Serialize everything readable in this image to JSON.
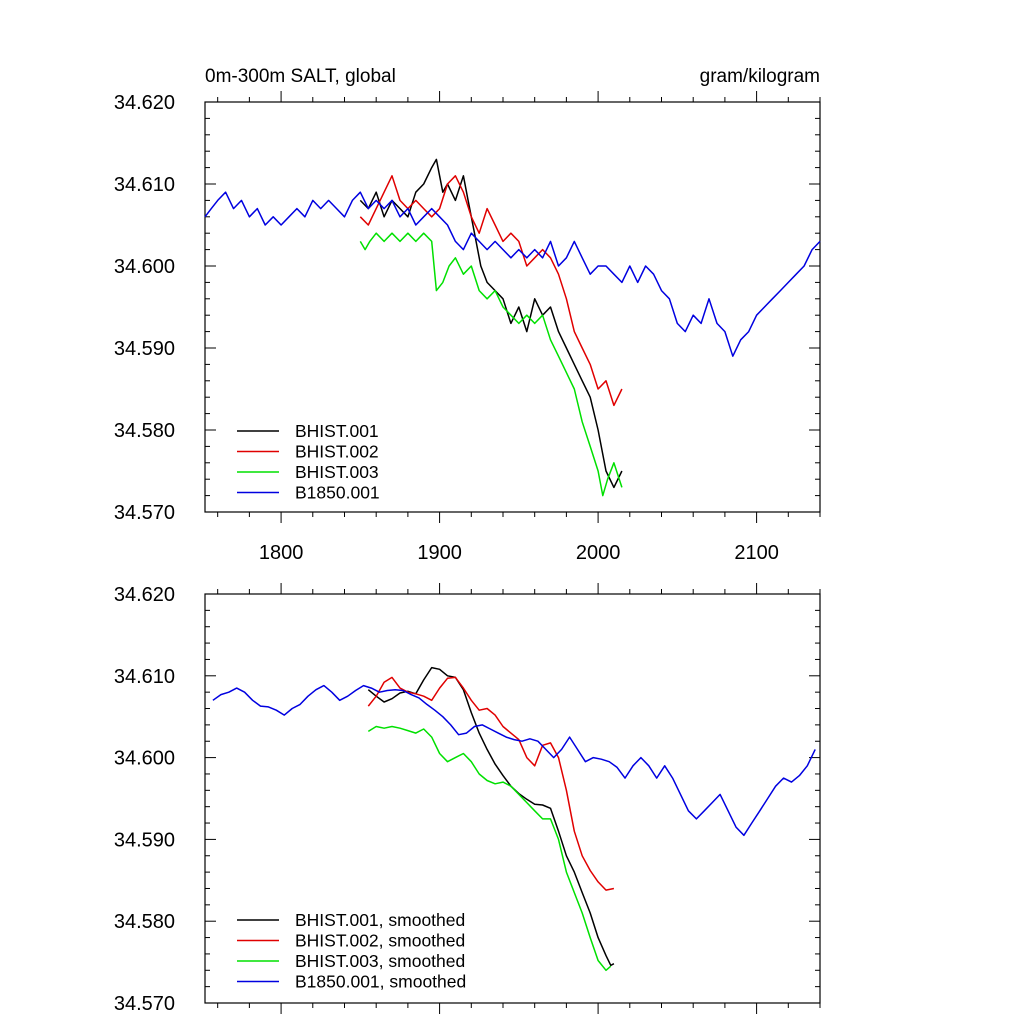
{
  "header": {
    "left_title": "0m-300m SALT, global",
    "right_title": "gram/kilogram"
  },
  "colors": {
    "BHIST.001": "#000000",
    "BHIST.002": "#e00000",
    "BHIST.003": "#00e000",
    "B1850.001": "#0000e0"
  },
  "chart_data": [
    {
      "type": "line",
      "title": "",
      "xlabel": "",
      "ylabel": "",
      "xlim": [
        1752,
        2140
      ],
      "ylim": [
        34.57,
        34.62
      ],
      "x_ticks": [
        1800,
        1900,
        2000,
        2100
      ],
      "x_tick_labels": [
        "1800",
        "1900",
        "2000",
        "2100"
      ],
      "y_ticks": [
        34.57,
        34.58,
        34.59,
        34.6,
        34.61,
        34.62
      ],
      "y_tick_labels": [
        "34.570",
        "34.580",
        "34.590",
        "34.600",
        "34.610",
        "34.620"
      ],
      "grid": false,
      "legend_position": "bottom-left",
      "series": [
        {
          "name": "BHIST.001",
          "color": "#000000",
          "x": [
            1850,
            1855,
            1860,
            1865,
            1870,
            1875,
            1880,
            1885,
            1890,
            1895,
            1898,
            1902,
            1905,
            1910,
            1915,
            1918,
            1922,
            1926,
            1930,
            1935,
            1940,
            1945,
            1950,
            1955,
            1960,
            1965,
            1970,
            1975,
            1980,
            1985,
            1990,
            1995,
            2000,
            2005,
            2010,
            2015
          ],
          "y": [
            34.608,
            34.607,
            34.609,
            34.606,
            34.608,
            34.607,
            34.606,
            34.609,
            34.61,
            34.612,
            34.613,
            34.609,
            34.61,
            34.608,
            34.611,
            34.608,
            34.604,
            34.6,
            34.598,
            34.597,
            34.596,
            34.593,
            34.595,
            34.592,
            34.596,
            34.594,
            34.595,
            34.592,
            34.59,
            34.588,
            34.586,
            34.584,
            34.58,
            34.575,
            34.573,
            34.575
          ]
        },
        {
          "name": "BHIST.002",
          "color": "#e00000",
          "x": [
            1850,
            1855,
            1860,
            1865,
            1870,
            1875,
            1880,
            1885,
            1890,
            1895,
            1900,
            1905,
            1910,
            1915,
            1920,
            1925,
            1930,
            1935,
            1940,
            1945,
            1950,
            1955,
            1960,
            1965,
            1970,
            1975,
            1980,
            1985,
            1990,
            1995,
            2000,
            2005,
            2010,
            2015
          ],
          "y": [
            34.606,
            34.605,
            34.607,
            34.609,
            34.611,
            34.608,
            34.607,
            34.608,
            34.607,
            34.606,
            34.607,
            34.61,
            34.611,
            34.609,
            34.606,
            34.604,
            34.607,
            34.605,
            34.603,
            34.604,
            34.603,
            34.6,
            34.601,
            34.602,
            34.601,
            34.599,
            34.596,
            34.592,
            34.59,
            34.588,
            34.585,
            34.586,
            34.583,
            34.585
          ]
        },
        {
          "name": "BHIST.003",
          "color": "#00e000",
          "x": [
            1850,
            1853,
            1856,
            1860,
            1865,
            1870,
            1875,
            1880,
            1885,
            1890,
            1895,
            1898,
            1902,
            1906,
            1910,
            1915,
            1920,
            1925,
            1930,
            1935,
            1940,
            1945,
            1950,
            1955,
            1960,
            1965,
            1970,
            1975,
            1980,
            1985,
            1990,
            1995,
            2000,
            2003,
            2006,
            2010,
            2015
          ],
          "y": [
            34.603,
            34.602,
            34.603,
            34.604,
            34.603,
            34.604,
            34.603,
            34.604,
            34.603,
            34.604,
            34.603,
            34.597,
            34.598,
            34.6,
            34.601,
            34.599,
            34.6,
            34.597,
            34.596,
            34.597,
            34.595,
            34.594,
            34.593,
            34.594,
            34.593,
            34.594,
            34.591,
            34.589,
            34.587,
            34.585,
            34.581,
            34.578,
            34.575,
            34.572,
            34.574,
            34.576,
            34.573
          ]
        },
        {
          "name": "B1850.001",
          "color": "#0000e0",
          "x": [
            1752,
            1756,
            1760,
            1765,
            1770,
            1775,
            1780,
            1785,
            1790,
            1795,
            1800,
            1805,
            1810,
            1815,
            1820,
            1825,
            1830,
            1835,
            1840,
            1845,
            1850,
            1855,
            1860,
            1865,
            1870,
            1875,
            1880,
            1885,
            1890,
            1895,
            1900,
            1905,
            1910,
            1915,
            1920,
            1925,
            1930,
            1935,
            1940,
            1945,
            1950,
            1955,
            1960,
            1965,
            1970,
            1975,
            1980,
            1985,
            1990,
            1995,
            2000,
            2005,
            2010,
            2015,
            2020,
            2025,
            2030,
            2035,
            2040,
            2045,
            2050,
            2055,
            2060,
            2065,
            2070,
            2075,
            2080,
            2085,
            2090,
            2095,
            2100,
            2105,
            2110,
            2115,
            2120,
            2125,
            2130,
            2135,
            2140
          ],
          "y": [
            34.606,
            34.607,
            34.608,
            34.609,
            34.607,
            34.608,
            34.606,
            34.607,
            34.605,
            34.606,
            34.605,
            34.606,
            34.607,
            34.606,
            34.608,
            34.607,
            34.608,
            34.607,
            34.606,
            34.608,
            34.609,
            34.607,
            34.608,
            34.607,
            34.608,
            34.606,
            34.607,
            34.605,
            34.606,
            34.607,
            34.606,
            34.605,
            34.603,
            34.602,
            34.604,
            34.603,
            34.602,
            34.603,
            34.602,
            34.601,
            34.602,
            34.601,
            34.602,
            34.601,
            34.603,
            34.6,
            34.601,
            34.603,
            34.601,
            34.599,
            34.6,
            34.6,
            34.599,
            34.598,
            34.6,
            34.598,
            34.6,
            34.599,
            34.597,
            34.596,
            34.593,
            34.592,
            34.594,
            34.593,
            34.596,
            34.593,
            34.592,
            34.589,
            34.591,
            34.592,
            34.594,
            34.595,
            34.596,
            34.597,
            34.598,
            34.599,
            34.6,
            34.602,
            34.603
          ]
        }
      ]
    },
    {
      "type": "line",
      "title": "",
      "xlabel": "",
      "ylabel": "",
      "xlim": [
        1752,
        2140
      ],
      "ylim": [
        34.57,
        34.62
      ],
      "x_ticks": [
        1800,
        1900,
        2000,
        2100
      ],
      "y_ticks": [
        34.57,
        34.58,
        34.59,
        34.6,
        34.61,
        34.62
      ],
      "y_tick_labels": [
        "34.570",
        "34.580",
        "34.590",
        "34.600",
        "34.610",
        "34.620"
      ],
      "grid": false,
      "legend_position": "bottom-left",
      "series": [
        {
          "name": "BHIST.001, smoothed",
          "color": "#000000",
          "x": [
            1855,
            1860,
            1865,
            1870,
            1875,
            1880,
            1885,
            1890,
            1895,
            1900,
            1905,
            1910,
            1915,
            1920,
            1925,
            1930,
            1935,
            1940,
            1945,
            1950,
            1955,
            1960,
            1965,
            1970,
            1975,
            1980,
            1985,
            1990,
            1995,
            2000,
            2005,
            2008,
            2010
          ],
          "y": [
            34.6083,
            34.6075,
            34.6068,
            34.6072,
            34.6079,
            34.6081,
            34.6078,
            34.6095,
            34.611,
            34.6108,
            34.61,
            34.6098,
            34.6083,
            34.6055,
            34.603,
            34.601,
            34.5992,
            34.5978,
            34.5965,
            34.5956,
            34.5949,
            34.5943,
            34.5942,
            34.5938,
            34.591,
            34.588,
            34.586,
            34.5835,
            34.581,
            34.578,
            34.5758,
            34.5746,
            34.5748
          ]
        },
        {
          "name": "BHIST.002, smoothed",
          "color": "#e00000",
          "x": [
            1855,
            1860,
            1865,
            1870,
            1875,
            1880,
            1885,
            1890,
            1895,
            1900,
            1905,
            1910,
            1915,
            1920,
            1925,
            1930,
            1935,
            1940,
            1945,
            1950,
            1955,
            1960,
            1965,
            1970,
            1975,
            1980,
            1985,
            1990,
            1995,
            2000,
            2005,
            2010
          ],
          "y": [
            34.6063,
            34.6075,
            34.6092,
            34.6098,
            34.6085,
            34.608,
            34.6078,
            34.6075,
            34.607,
            34.6085,
            34.6097,
            34.6098,
            34.6085,
            34.607,
            34.6058,
            34.606,
            34.6052,
            34.6038,
            34.603,
            34.6022,
            34.6,
            34.599,
            34.6015,
            34.6018,
            34.6,
            34.596,
            34.591,
            34.588,
            34.5862,
            34.5848,
            34.5838,
            34.584
          ]
        },
        {
          "name": "BHIST.003, smoothed",
          "color": "#00e000",
          "x": [
            1855,
            1860,
            1865,
            1870,
            1875,
            1880,
            1885,
            1890,
            1895,
            1900,
            1905,
            1910,
            1915,
            1920,
            1925,
            1930,
            1935,
            1940,
            1945,
            1950,
            1955,
            1960,
            1965,
            1970,
            1975,
            1980,
            1985,
            1990,
            1995,
            2000,
            2005,
            2008
          ],
          "y": [
            34.6032,
            34.6038,
            34.6036,
            34.6038,
            34.6036,
            34.6033,
            34.603,
            34.6035,
            34.6025,
            34.6005,
            34.5995,
            34.6,
            34.6005,
            34.5995,
            34.598,
            34.5972,
            34.5968,
            34.597,
            34.5965,
            34.5955,
            34.5945,
            34.5935,
            34.5925,
            34.5925,
            34.59,
            34.586,
            34.5835,
            34.581,
            34.578,
            34.5752,
            34.574,
            34.5745
          ]
        },
        {
          "name": "B1850.001, smoothed",
          "color": "#0000e0",
          "x": [
            1757,
            1762,
            1767,
            1772,
            1777,
            1782,
            1787,
            1792,
            1797,
            1802,
            1807,
            1812,
            1817,
            1822,
            1827,
            1832,
            1837,
            1842,
            1847,
            1852,
            1857,
            1862,
            1867,
            1872,
            1877,
            1882,
            1887,
            1892,
            1897,
            1902,
            1907,
            1912,
            1917,
            1922,
            1927,
            1932,
            1937,
            1942,
            1947,
            1952,
            1957,
            1962,
            1967,
            1972,
            1977,
            1982,
            1987,
            1992,
            1997,
            2002,
            2007,
            2012,
            2017,
            2022,
            2027,
            2032,
            2037,
            2042,
            2047,
            2052,
            2057,
            2062,
            2067,
            2072,
            2077,
            2082,
            2087,
            2092,
            2097,
            2102,
            2107,
            2112,
            2117,
            2122,
            2127,
            2132,
            2137
          ],
          "y": [
            34.607,
            34.6077,
            34.608,
            34.6085,
            34.608,
            34.607,
            34.6063,
            34.6062,
            34.6058,
            34.6052,
            34.606,
            34.6065,
            34.6075,
            34.6083,
            34.6088,
            34.608,
            34.607,
            34.6075,
            34.6082,
            34.6088,
            34.6085,
            34.608,
            34.6082,
            34.6083,
            34.6082,
            34.6077,
            34.6073,
            34.6065,
            34.6058,
            34.605,
            34.604,
            34.6028,
            34.603,
            34.6038,
            34.604,
            34.6035,
            34.603,
            34.6025,
            34.6022,
            34.602,
            34.6023,
            34.602,
            34.601,
            34.6,
            34.601,
            34.6025,
            34.601,
            34.5995,
            34.6,
            34.5998,
            34.5995,
            34.5988,
            34.5975,
            34.599,
            34.6,
            34.599,
            34.5975,
            34.599,
            34.5975,
            34.5955,
            34.5935,
            34.5925,
            34.5935,
            34.5945,
            34.5955,
            34.5935,
            34.5915,
            34.5905,
            34.592,
            34.5935,
            34.595,
            34.5965,
            34.5975,
            34.597,
            34.5978,
            34.599,
            34.601
          ]
        }
      ]
    }
  ]
}
